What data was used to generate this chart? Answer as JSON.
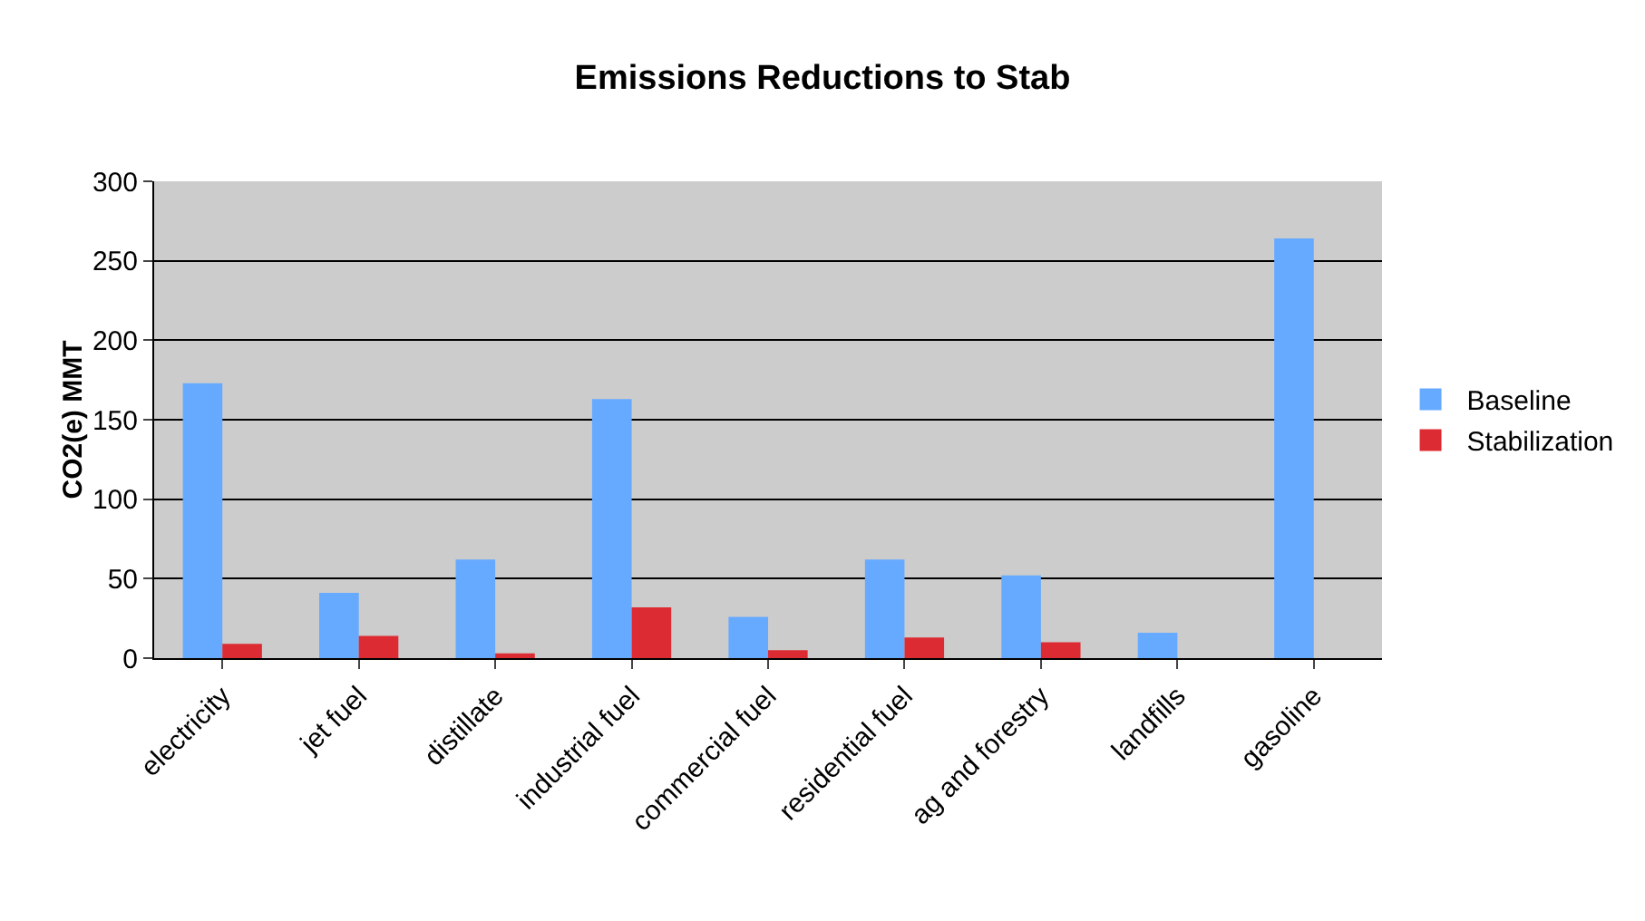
{
  "chart_data": {
    "type": "bar",
    "title": "Emissions Reductions to Stab",
    "ylabel": "CO2(e) MMT",
    "categories": [
      "electricity",
      "jet fuel",
      "distillate",
      "industrial fuel",
      "commercial fuel",
      "residential fuel",
      "ag and forestry",
      "landfills",
      "gasoline"
    ],
    "series": [
      {
        "name": "Baseline",
        "color": "#66aaff",
        "values": [
          173,
          41,
          62,
          163,
          26,
          62,
          52,
          16,
          264
        ]
      },
      {
        "name": "Stabilization",
        "color": "#dd2b33",
        "values": [
          9,
          14,
          3,
          32,
          5,
          13,
          10,
          0,
          null
        ]
      }
    ],
    "ylim": [
      0,
      300
    ],
    "yticks": [
      0,
      50,
      100,
      150,
      200,
      250,
      300
    ],
    "grid": "y",
    "legend": "right"
  }
}
